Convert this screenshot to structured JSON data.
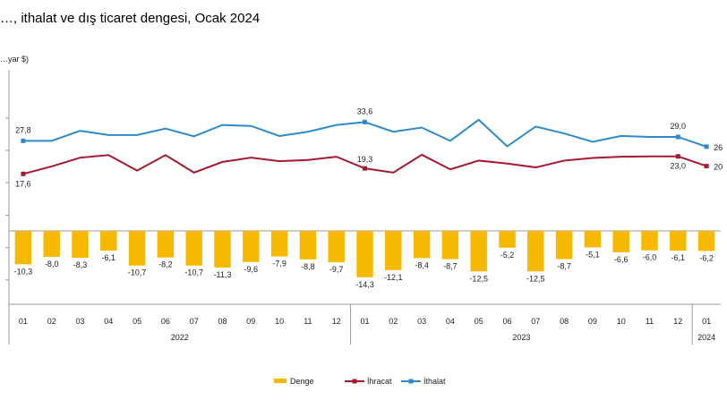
{
  "chart_data": {
    "type": "bar+line",
    "title": "…, ithalat ve dış ticaret dengesi, Ocak 2024",
    "ylabel": "…yar $)",
    "categories": [
      "01",
      "02",
      "03",
      "04",
      "05",
      "06",
      "07",
      "08",
      "09",
      "10",
      "11",
      "12",
      "01",
      "02",
      "03",
      "04",
      "05",
      "06",
      "07",
      "08",
      "09",
      "10",
      "11",
      "12",
      "01"
    ],
    "years": [
      {
        "label": "2022",
        "start": 0,
        "end": 11
      },
      {
        "label": "2023",
        "start": 12,
        "end": 23
      },
      {
        "label": "2024",
        "start": 24,
        "end": 24
      }
    ],
    "ylim": [
      -22,
      35
    ],
    "series": [
      {
        "name": "Denge",
        "kind": "bar",
        "color": "#F7B900",
        "values": [
          -10.3,
          -8.0,
          -8.3,
          -6.1,
          -10.7,
          -8.2,
          -10.7,
          -11.3,
          -9.6,
          -7.9,
          -8.8,
          -9.7,
          -14.3,
          -12.1,
          -8.4,
          -8.7,
          -12.5,
          -5.2,
          -12.5,
          -8.7,
          -5.1,
          -6.6,
          -6.0,
          -6.1,
          -6.2
        ],
        "labels": [
          "-10,3",
          "-8,0",
          "-8,3",
          "-6,1",
          "-10,7",
          "-8,2",
          "-10,7",
          "-11,3",
          "-9,6",
          "-7,9",
          "-8,8",
          "-9,7",
          "-14,3",
          "-12,1",
          "-8,4",
          "-8,7",
          "-12,5",
          "-5,2",
          "-12,5",
          "-8,7",
          "-5,1",
          "-6,6",
          "-6,0",
          "-6,1",
          "-6,2"
        ]
      },
      {
        "name": "İhracat",
        "kind": "line",
        "color": "#A6192E",
        "values": [
          17.6,
          19.9,
          22.6,
          23.4,
          18.6,
          23.4,
          18.0,
          21.3,
          22.6,
          21.5,
          21.9,
          22.9,
          19.3,
          18.0,
          23.5,
          19.0,
          21.7,
          20.8,
          19.6,
          21.7,
          22.5,
          22.9,
          23.0,
          23.0,
          20.0
        ],
        "labels": {
          "0": "17,6",
          "12": "19,3",
          "23": "23,0",
          "24": "20"
        }
      },
      {
        "name": "İthalat",
        "kind": "line",
        "color": "#2E8BC9",
        "values": [
          27.8,
          27.8,
          30.9,
          29.6,
          29.6,
          31.6,
          29.2,
          32.7,
          32.4,
          29.3,
          30.6,
          32.7,
          33.6,
          30.6,
          31.9,
          27.8,
          34.3,
          26.1,
          32.2,
          30.1,
          27.5,
          29.3,
          29.0,
          29.0,
          26.0
        ],
        "labels": {
          "0": "27,8",
          "12": "33,6",
          "23": "29,0",
          "24": "26"
        }
      }
    ],
    "legend_position": "bottom-center",
    "grid": false
  }
}
